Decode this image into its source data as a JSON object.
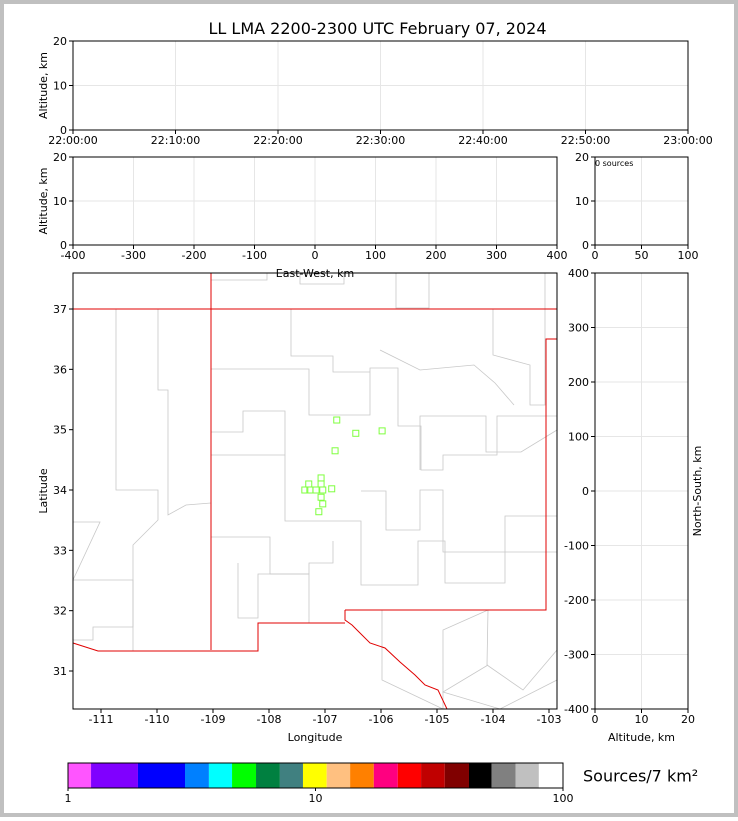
{
  "chart_data": [
    {
      "type": "scatter",
      "title": "LL LMA 2200-2300 UTC February 07, 2024",
      "ylabel": "Altitude, km",
      "xlim": [
        "22:00:00",
        "23:00:00"
      ],
      "xticks": [
        "22:00:00",
        "22:10:00",
        "22:20:00",
        "22:30:00",
        "22:40:00",
        "22:50:00",
        "23:00:00"
      ],
      "ylim": [
        0,
        20
      ],
      "yticks": [
        0,
        10,
        20
      ],
      "grid": true
    },
    {
      "type": "scatter",
      "xlabel": "East-West, km",
      "ylabel": "Altitude, km",
      "xlim": [
        -400,
        400
      ],
      "xticks": [
        -400,
        -300,
        -200,
        -100,
        0,
        100,
        200,
        300,
        400
      ],
      "ylim": [
        0,
        20
      ],
      "yticks": [
        0,
        10,
        20
      ],
      "grid": true
    },
    {
      "type": "scatter",
      "annotation": "0 sources",
      "xlim": [
        0,
        100
      ],
      "xticks": [
        0,
        50,
        100
      ],
      "ylim": [
        0,
        20
      ],
      "yticks": [
        0,
        10,
        20
      ],
      "grid": true
    },
    {
      "type": "scatter",
      "xlabel": "Longitude",
      "ylabel": "Latitude",
      "xlim": [
        -111.5,
        -102.857
      ],
      "xticks": [
        -111,
        -110,
        -109,
        -108,
        -107,
        -106,
        -105,
        -104,
        -103
      ],
      "ylim": [
        30.37,
        37.597
      ],
      "yticks": [
        31,
        32,
        33,
        34,
        35,
        36,
        37
      ],
      "grid": false,
      "color": "#7fff3f",
      "x": [
        -106.79,
        -106.45,
        -105.98,
        -106.82,
        -107.07,
        -107.07,
        -107.29,
        -107.36,
        -107.27,
        -107.16,
        -107.04,
        -106.88,
        -107.07,
        -107.04,
        -107.11
      ],
      "values": [
        35.16,
        34.94,
        34.98,
        34.65,
        34.2,
        34.1,
        34.1,
        34.0,
        34.0,
        34.0,
        34.0,
        34.02,
        33.88,
        33.77,
        33.64
      ]
    },
    {
      "type": "scatter",
      "xlabel": "Altitude, km",
      "ylabel": "North-South, km",
      "xlim": [
        0,
        20
      ],
      "xticks": [
        0,
        10,
        20
      ],
      "ylim": [
        -400,
        400
      ],
      "yticks": [
        -400,
        -300,
        -200,
        -100,
        0,
        100,
        200,
        300,
        400
      ],
      "grid": true
    },
    {
      "type": "colorbar",
      "label": "Sources/7 km²",
      "log": true,
      "xlim": [
        1,
        100
      ],
      "xticks": [
        1,
        10,
        100
      ],
      "bounds": [
        1,
        1.239,
        1.917,
        2.97,
        3.71,
        4.6,
        5.75,
        7.18,
        8.9,
        11.1,
        13.8,
        17.2,
        21.5,
        26.7,
        33.3,
        41.7,
        51.5,
        64.4,
        79.9,
        100
      ],
      "colors": [
        "#ff55ff",
        "#8000ff",
        "#0000ff",
        "#0080ff",
        "#00ffff",
        "#00ff00",
        "#008040",
        "#408080",
        "#ffff00",
        "#ffc080",
        "#ff8000",
        "#ff0080",
        "#ff0000",
        "#c00000",
        "#800000",
        "#000000",
        "#808080",
        "#c0c0c0",
        "#ffffff"
      ]
    }
  ]
}
